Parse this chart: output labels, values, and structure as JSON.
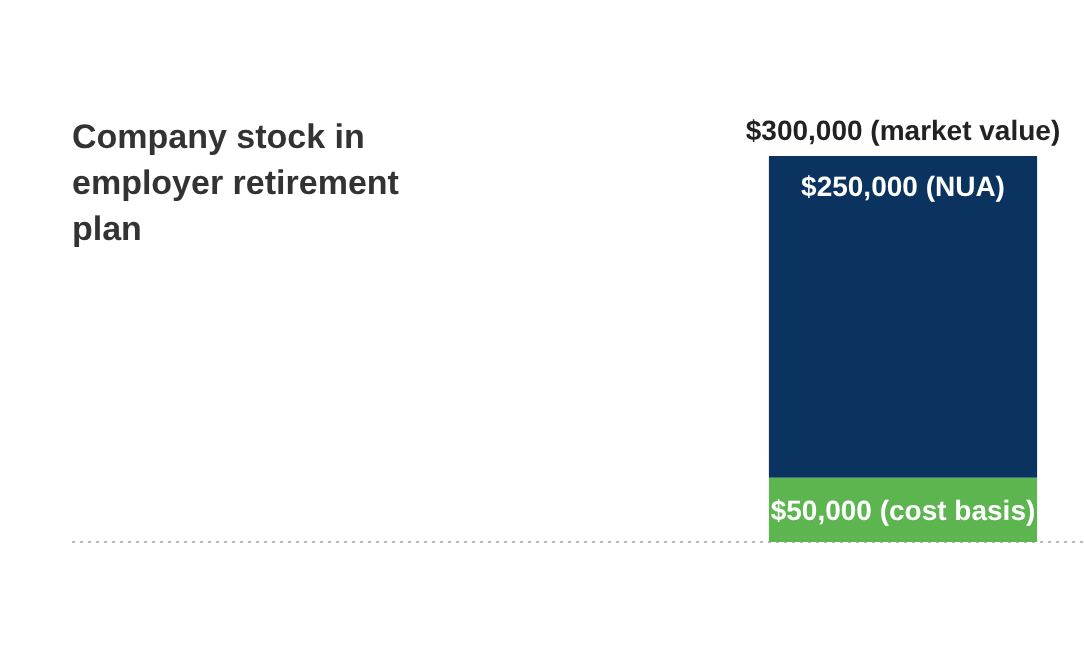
{
  "chart_data": {
    "type": "bar",
    "title": "Company stock in employer retirement plan",
    "categories": [
      null
    ],
    "stacked": true,
    "ylim": [
      0,
      300000
    ],
    "series": [
      {
        "color": "#5cb54f",
        "values": [
          50000
        ],
        "value_labels": [
          "$50,000 (cost basis)"
        ]
      },
      {
        "color": "#0a3360",
        "values": [
          250000
        ],
        "value_labels": [
          "$250,000 (NUA)"
        ]
      }
    ],
    "totals": [
      "$300,000 (market value)"
    ]
  }
}
